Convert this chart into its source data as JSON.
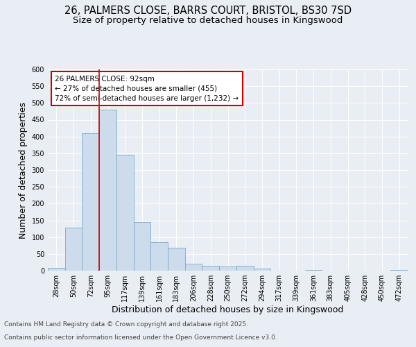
{
  "title_line1": "26, PALMERS CLOSE, BARRS COURT, BRISTOL, BS30 7SD",
  "title_line2": "Size of property relative to detached houses in Kingswood",
  "xlabel": "Distribution of detached houses by size in Kingswood",
  "ylabel": "Number of detached properties",
  "categories": [
    "28sqm",
    "50sqm",
    "72sqm",
    "95sqm",
    "117sqm",
    "139sqm",
    "161sqm",
    "183sqm",
    "206sqm",
    "228sqm",
    "250sqm",
    "272sqm",
    "294sqm",
    "317sqm",
    "339sqm",
    "361sqm",
    "383sqm",
    "405sqm",
    "428sqm",
    "450sqm",
    "472sqm"
  ],
  "values": [
    8,
    128,
    410,
    480,
    345,
    145,
    85,
    68,
    20,
    15,
    12,
    15,
    6,
    0,
    0,
    3,
    0,
    0,
    0,
    0,
    2
  ],
  "bar_color": "#ccdcec",
  "bar_edge_color": "#7aaaca",
  "vline_color": "#cc0000",
  "annotation_text": "26 PALMERS CLOSE: 92sqm\n← 27% of detached houses are smaller (455)\n72% of semi-detached houses are larger (1,232) →",
  "annotation_box_facecolor": "#ffffff",
  "annotation_box_edgecolor": "#cc0000",
  "ylim": [
    0,
    600
  ],
  "yticks": [
    0,
    50,
    100,
    150,
    200,
    250,
    300,
    350,
    400,
    450,
    500,
    550,
    600
  ],
  "background_color": "#e8eef4",
  "grid_color": "#ffffff",
  "footer_line1": "Contains HM Land Registry data © Crown copyright and database right 2025.",
  "footer_line2": "Contains public sector information licensed under the Open Government Licence v3.0.",
  "title_fontsize": 10.5,
  "subtitle_fontsize": 9.5,
  "axis_label_fontsize": 9,
  "tick_fontsize": 7,
  "annotation_fontsize": 7.5,
  "footer_fontsize": 6.5,
  "vline_xindex": 2.5
}
